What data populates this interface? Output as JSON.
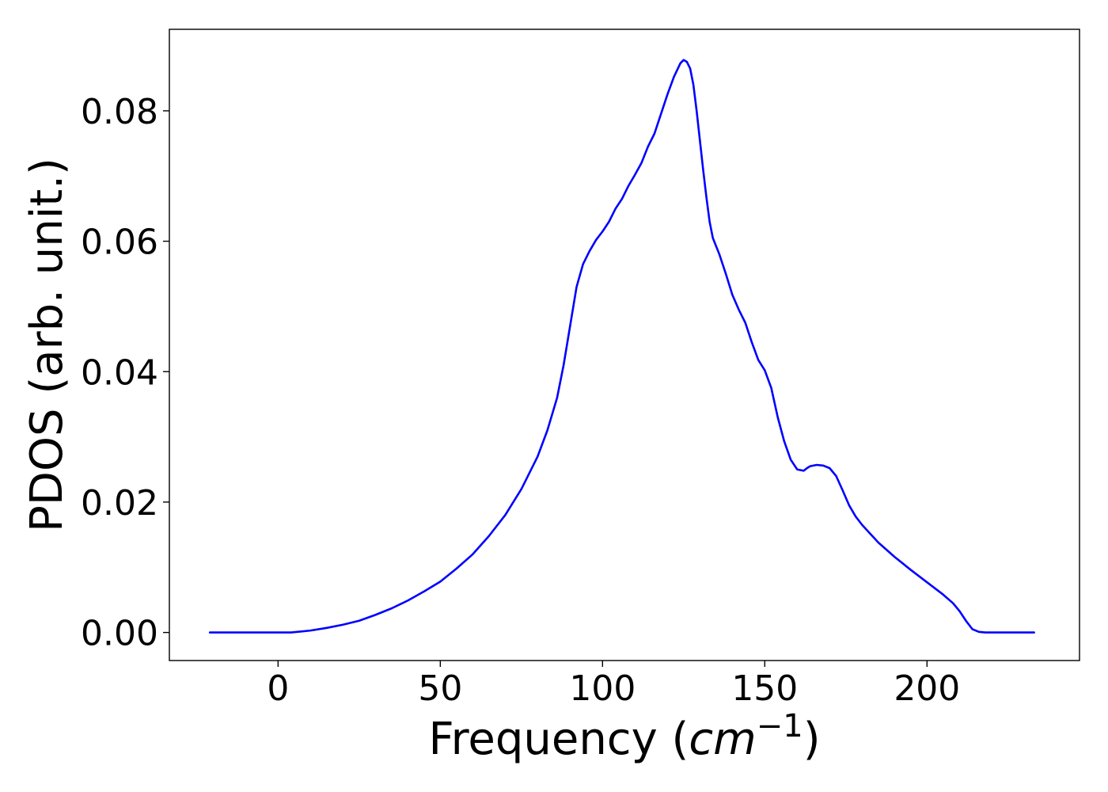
{
  "chart_data": {
    "type": "line",
    "title": "",
    "xlabel": {
      "main": "Frequency (",
      "unit_base": "cm",
      "unit_exponent": "−1",
      "close": ")"
    },
    "ylabel": "PDOS (arb. unit.)",
    "xlim": [
      -33.5,
      247
    ],
    "ylim": [
      -0.0043,
      0.0925
    ],
    "xticks": [
      0,
      50,
      100,
      150,
      200
    ],
    "xtick_labels": [
      "0",
      "50",
      "100",
      "150",
      "200"
    ],
    "yticks": [
      0,
      0.02,
      0.04,
      0.06,
      0.08
    ],
    "ytick_labels": [
      "0.00",
      "0.02",
      "0.04",
      "0.06",
      "0.08"
    ],
    "grid": false,
    "legend": "none",
    "colors": {
      "line": "#0000ff",
      "axes": "#000000",
      "background": "#ffffff"
    },
    "series": [
      {
        "x": [
          -21,
          -10,
          0,
          4,
          10,
          15,
          20,
          25,
          30,
          35,
          40,
          45,
          50,
          55,
          60,
          65,
          70,
          75,
          80,
          83,
          86,
          88,
          90,
          92,
          94,
          96,
          98,
          100,
          102,
          104,
          106,
          108,
          110,
          112,
          114,
          116,
          118,
          120,
          122,
          124,
          125,
          126,
          127,
          128,
          129,
          130,
          131,
          132,
          133,
          134,
          136,
          138,
          140,
          142,
          144,
          146,
          148,
          150,
          152,
          154,
          156,
          158,
          160,
          162,
          163,
          164,
          166,
          168,
          170,
          172,
          174,
          176,
          178,
          180,
          185,
          190,
          195,
          200,
          205,
          208,
          210,
          212,
          214,
          216,
          218,
          220,
          233
        ],
        "y": [
          0,
          0,
          0,
          0,
          0.0003,
          0.0007,
          0.0012,
          0.0018,
          0.0027,
          0.0037,
          0.0049,
          0.0063,
          0.0078,
          0.0098,
          0.012,
          0.0148,
          0.018,
          0.022,
          0.027,
          0.031,
          0.036,
          0.041,
          0.047,
          0.053,
          0.0565,
          0.0585,
          0.0602,
          0.0615,
          0.063,
          0.065,
          0.0665,
          0.0685,
          0.0702,
          0.072,
          0.0745,
          0.0765,
          0.0795,
          0.0825,
          0.0852,
          0.0873,
          0.0878,
          0.0875,
          0.0865,
          0.084,
          0.08,
          0.0755,
          0.071,
          0.0668,
          0.063,
          0.0605,
          0.058,
          0.055,
          0.0518,
          0.0495,
          0.0475,
          0.0445,
          0.0418,
          0.0402,
          0.0375,
          0.033,
          0.0293,
          0.0265,
          0.025,
          0.0248,
          0.0252,
          0.0255,
          0.0257,
          0.0256,
          0.0252,
          0.024,
          0.0218,
          0.0195,
          0.0178,
          0.0165,
          0.0138,
          0.0116,
          0.0096,
          0.0077,
          0.0058,
          0.0045,
          0.0033,
          0.0018,
          0.0005,
          0.0001,
          0,
          0,
          0
        ]
      }
    ]
  }
}
